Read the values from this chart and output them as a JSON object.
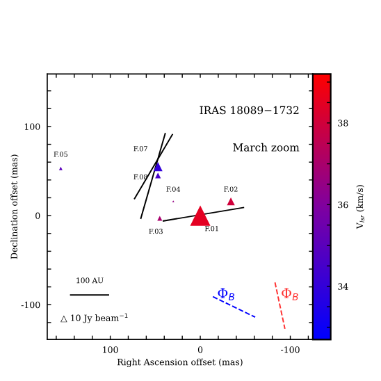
{
  "chart_data": {
    "type": "bubble",
    "xlabel": "Right Ascension offset (mas)",
    "ylabel": "Declination offset (mas)",
    "clabel": "V$_{lsr}$ (km/s)",
    "series": [
      {
        "marker": "triangle",
        "x": [
          0,
          -34,
          45,
          30,
          155,
          47,
          47
        ],
        "values": [
          0,
          16,
          -3,
          16,
          53,
          55,
          45
        ],
        "sizes": [
          1,
          0.15,
          0.06,
          0.01,
          0.03,
          0.2,
          0.08
        ],
        "colors": [
          "#e40022",
          "#d0003b",
          "#a9006c",
          "#950085",
          "#5b00bc",
          "#3300d9",
          "#4700ca"
        ]
      },
      {
        "type": "line",
        "x": [
          41,
          -48
        ],
        "values": [
          -6,
          9
        ],
        "color": "#000000"
      },
      {
        "type": "line",
        "x": [
          31,
          73
        ],
        "values": [
          91,
          19
        ],
        "color": "#000000"
      },
      {
        "type": "line",
        "x": [
          39,
          66
        ],
        "values": [
          92,
          -3
        ],
        "color": "#000000"
      },
      {
        "type": "line",
        "x": [
          -14,
          -61
        ],
        "values": [
          -91,
          -114
        ],
        "color": "#0000ff",
        "line_style": "dashed"
      },
      {
        "type": "line",
        "x": [
          -83,
          -94
        ],
        "values": [
          -75,
          -127
        ],
        "color": "#ff3030",
        "line_style": "dashed"
      },
      {
        "type": "line",
        "x": [
          144,
          102
        ],
        "values": [
          -89,
          -89
        ],
        "color": "#000000"
      }
    ],
    "annotations": [
      {
        "text": "F.01",
        "x": 0,
        "y": 0
      },
      {
        "text": "F.02",
        "x": -34,
        "y": 16
      },
      {
        "text": "F.03",
        "x": 45,
        "y": -3
      },
      {
        "text": "F.04",
        "x": 30,
        "y": 16
      },
      {
        "text": "F.05",
        "x": 155,
        "y": 53
      },
      {
        "text": "F.07",
        "x": 47,
        "y": 55
      },
      {
        "text": "F.08",
        "x": 47,
        "y": 45
      },
      "Φ$_{B}$",
      "Φ$_{B}$",
      "100 AU",
      "IRAS 18089−1732",
      "March zoom",
      "△ 10 Jy beam$^{−1}$"
    ],
    "xlim": [
      170,
      -125
    ],
    "ylim": [
      -139,
      159
    ],
    "xticks": [
      {
        "value": 160,
        "label": null
      },
      {
        "value": 140,
        "label": null
      },
      {
        "value": 120,
        "label": null
      },
      100,
      {
        "value": 80,
        "label": null
      },
      {
        "value": 60,
        "label": null
      },
      {
        "value": 40,
        "label": null
      },
      {
        "value": 20,
        "label": null
      },
      0,
      {
        "value": -20,
        "label": null
      },
      {
        "value": -40,
        "label": null
      },
      {
        "value": -60,
        "label": null
      },
      {
        "value": -80,
        "label": null
      },
      -100,
      {
        "value": -120,
        "label": null
      }
    ],
    "yticks": [
      {
        "value": -120,
        "label": null
      },
      -100,
      {
        "value": -80,
        "label": null
      },
      {
        "value": -60,
        "label": null
      },
      {
        "value": -40,
        "label": null
      },
      {
        "value": -20,
        "label": null
      },
      0,
      {
        "value": 20,
        "label": null
      },
      {
        "value": 40,
        "label": null
      },
      {
        "value": 60,
        "label": null
      },
      {
        "value": 80,
        "label": null
      },
      100,
      {
        "value": 120,
        "label": null
      },
      {
        "value": 140,
        "label": null
      }
    ],
    "clim": [
      32.7,
      39.2
    ],
    "cticks": [
      {
        "value": 33,
        "label": null
      },
      {
        "value": 33.5,
        "label": null
      },
      34,
      {
        "value": 34.5,
        "label": null
      },
      {
        "value": 35,
        "label": null
      },
      {
        "value": 35.5,
        "label": null
      },
      36,
      {
        "value": 36.5,
        "label": null
      },
      {
        "value": 37,
        "label": null
      },
      {
        "value": 37.5,
        "label": null
      },
      38,
      {
        "value": 38.5,
        "label": null
      },
      {
        "value": 39,
        "label": null
      }
    ]
  }
}
